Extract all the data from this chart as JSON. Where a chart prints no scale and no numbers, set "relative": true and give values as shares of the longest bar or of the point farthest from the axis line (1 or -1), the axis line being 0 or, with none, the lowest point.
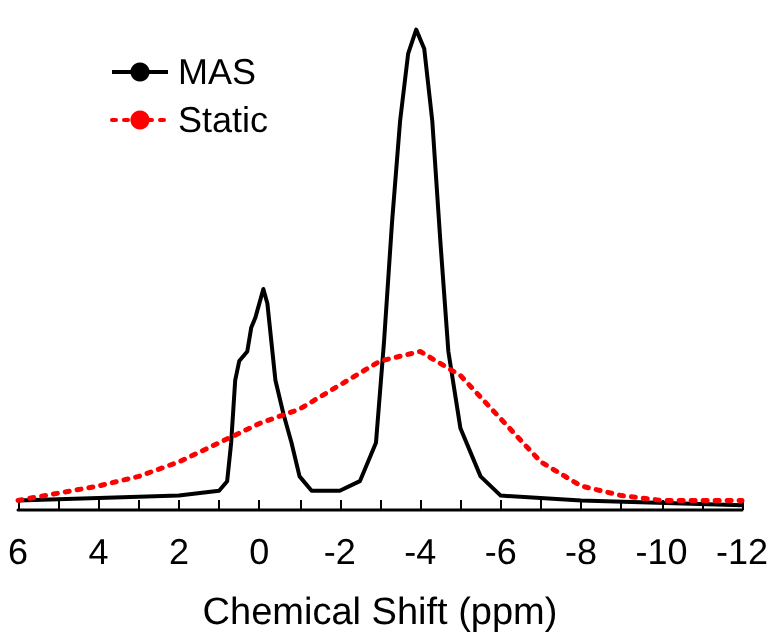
{
  "chart_data": {
    "type": "line",
    "relative": true,
    "xlabel": "Chemical Shift (ppm)",
    "xlim": [
      6,
      -12
    ],
    "xticks": [
      6,
      {
        "value": 5,
        "label": null
      },
      4,
      {
        "value": 3,
        "label": null
      },
      2,
      {
        "value": 1,
        "label": null
      },
      0,
      {
        "value": -1,
        "label": null
      },
      -2,
      {
        "value": -3,
        "label": null
      },
      -4,
      {
        "value": -5,
        "label": null
      },
      -6,
      {
        "value": -7,
        "label": null
      },
      -8,
      {
        "value": -9,
        "label": null
      },
      -10,
      {
        "value": -11,
        "label": null
      },
      -12
    ],
    "legend": "top left",
    "grid": false,
    "marker": "none",
    "series": [
      {
        "name": "MAS",
        "color": "#000000",
        "line_style": "solid",
        "x": [
          6,
          2,
          1,
          0.8,
          0.7,
          0.6,
          0.5,
          0.3,
          0.2,
          0.1,
          -0.1,
          -0.2,
          -0.4,
          -0.6,
          -0.8,
          -1,
          -1.3,
          -2,
          -2.5,
          -2.9,
          -3.1,
          -3.3,
          -3.5,
          -3.7,
          -3.9,
          -4.1,
          -4.3,
          -4.5,
          -4.7,
          -5,
          -5.5,
          -6,
          -8,
          -12
        ],
        "values": [
          0.02,
          0.03,
          0.04,
          0.06,
          0.14,
          0.27,
          0.31,
          0.33,
          0.38,
          0.4,
          0.46,
          0.43,
          0.27,
          0.2,
          0.14,
          0.07,
          0.04,
          0.04,
          0.06,
          0.14,
          0.35,
          0.6,
          0.81,
          0.95,
          1,
          0.96,
          0.81,
          0.56,
          0.33,
          0.17,
          0.07,
          0.03,
          0.02,
          0.01
        ]
      },
      {
        "name": "Static",
        "color": "#ff0000",
        "line_style": "dotted",
        "x": [
          6,
          4,
          3,
          2,
          1,
          0,
          -1,
          -2,
          -3,
          -4,
          -5,
          -6,
          -7,
          -8,
          -9,
          -10,
          -12
        ],
        "values": [
          0.02,
          0.05,
          0.07,
          0.1,
          0.14,
          0.18,
          0.21,
          0.26,
          0.31,
          0.33,
          0.28,
          0.19,
          0.1,
          0.05,
          0.03,
          0.02,
          0.02
        ]
      }
    ]
  }
}
